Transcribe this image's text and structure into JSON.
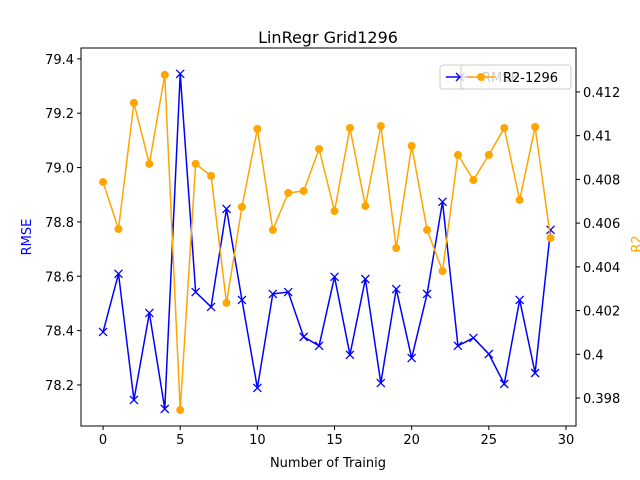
{
  "chart_data": {
    "type": "line",
    "title": "LinRegr Grid1296",
    "x_label": "Number of Trainig",
    "y_label": "RMSE",
    "y2_label": "R2",
    "x": [
      0,
      1,
      2,
      3,
      4,
      5,
      6,
      7,
      8,
      9,
      10,
      11,
      12,
      13,
      14,
      15,
      16,
      17,
      18,
      19,
      20,
      21,
      22,
      23,
      24,
      25,
      26,
      27,
      28,
      29
    ],
    "series": [
      {
        "name": "RMSE",
        "color": "#0000ff",
        "marker": "x",
        "axis": "y",
        "values": [
          78.395,
          78.609,
          78.145,
          78.465,
          78.112,
          79.345,
          78.542,
          78.487,
          78.848,
          78.513,
          78.189,
          78.535,
          78.542,
          78.377,
          78.344,
          78.598,
          78.311,
          78.59,
          78.207,
          78.553,
          78.299,
          78.535,
          78.874,
          78.344,
          78.373,
          78.314,
          78.204,
          78.513,
          78.244,
          78.771
        ]
      },
      {
        "name": "R2-1296",
        "color": "#ffa500",
        "marker": "o",
        "axis": "y2",
        "values": [
          0.40788,
          0.40573,
          0.4115,
          0.40871,
          0.41278,
          0.39745,
          0.40871,
          0.40816,
          0.40235,
          0.40674,
          0.41031,
          0.40569,
          0.40738,
          0.40747,
          0.40939,
          0.40655,
          0.41035,
          0.40678,
          0.41044,
          0.40486,
          0.40953,
          0.40569,
          0.40381,
          0.40912,
          0.40797,
          0.40912,
          0.41035,
          0.40706,
          0.4104,
          0.40532
        ]
      }
    ],
    "xlim": [
      -1.43,
      30.65
    ],
    "xticks": [
      0,
      5,
      10,
      15,
      20,
      25,
      30
    ],
    "ylim": [
      78.049,
      79.44
    ],
    "yticks": [
      78.2,
      78.4,
      78.6,
      78.8,
      {
        "value": 79,
        "label": "79.0"
      },
      79.2,
      79.4
    ],
    "y2lim": [
      0.39672,
      0.41401
    ],
    "y2ticks": [
      0.398,
      0.4,
      0.402,
      0.404,
      0.406,
      0.408,
      0.41,
      0.412
    ],
    "legend": "upper right",
    "grid": false
  }
}
